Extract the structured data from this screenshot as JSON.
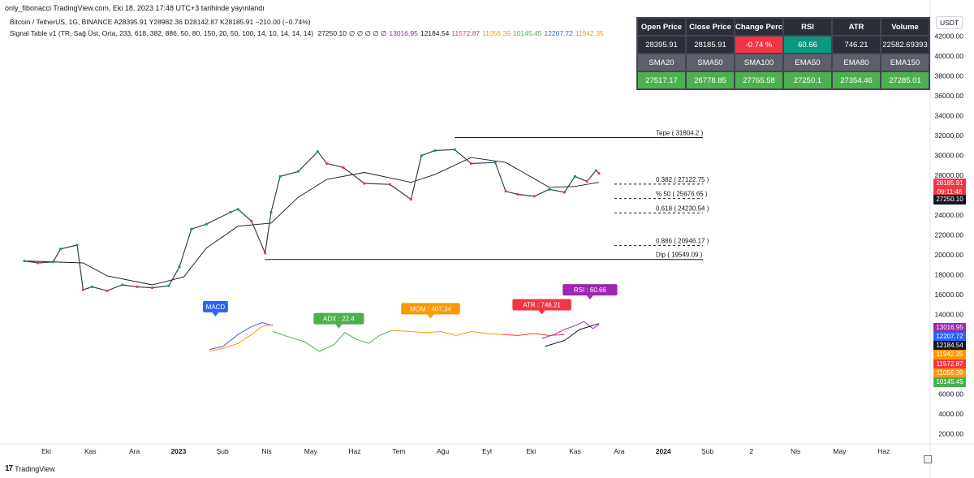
{
  "header": {
    "published_line": "only_fibonacci TradingView.com, Eki 18, 2023 17:48 UTC+3 tarihinde yayınlandı",
    "symbol_line": "Bitcoin / TetherUS, 1G, BINANCE  A28395.91  Y28982.36  D28142.87  K28185.91  −210.00 (−0.74%)",
    "indicator_name": "Signal Table v1 (TR, Sağ Üst, Orta, 233, 618, 382, 886, 50, 80, 150, 20, 50, 100, 14, 10, 14, 14, 14)",
    "indicator_values": [
      {
        "text": "27250.10",
        "color": "#131722"
      },
      {
        "text": "∅ ∅ ∅ ∅ ∅",
        "color": "#131722"
      },
      {
        "text": "13016.95",
        "color": "#9c27b0"
      },
      {
        "text": "12184.54",
        "color": "#131722"
      },
      {
        "text": "11572.87",
        "color": "#f23645"
      },
      {
        "text": "11056.39",
        "color": "#ff9800"
      },
      {
        "text": "10145.45",
        "color": "#4caf50"
      },
      {
        "text": "12207.72",
        "color": "#2962ff"
      },
      {
        "text": "11942.35",
        "color": "#ff9800"
      }
    ]
  },
  "table": {
    "headers": [
      "Open Price",
      "Close Price",
      "Change Percent",
      "RSI",
      "ATR",
      "Volume"
    ],
    "values": [
      "28395.91",
      "28185.91",
      "-0.74 %",
      "60.66",
      "746.21",
      "22582.69393"
    ],
    "ma_headers": [
      "SMA20",
      "SMA50",
      "SMA100",
      "EMA50",
      "EMA80",
      "EMA150"
    ],
    "ma_values": [
      "27517.17",
      "26778.85",
      "27765.58",
      "27250.1",
      "27354.46",
      "27285.01"
    ]
  },
  "currency": "USDT",
  "price_tags": [
    {
      "text": "28185.91",
      "color": "#f23645"
    },
    {
      "text": "09:11:46",
      "color": "#f23645"
    },
    {
      "text": "27250.10",
      "color": "#131722"
    },
    {
      "text": "13016.95",
      "color": "#9c27b0"
    },
    {
      "text": "12207.72",
      "color": "#2962ff"
    },
    {
      "text": "12184.54",
      "color": "#131722"
    },
    {
      "text": "11942.35",
      "color": "#ff9800"
    },
    {
      "text": "11572.87",
      "color": "#f23645"
    },
    {
      "text": "11056.39",
      "color": "#ff9800"
    },
    {
      "text": "10145.45",
      "color": "#4caf50"
    }
  ],
  "brand": "TradingView",
  "brand_logo": "17",
  "chart_data": {
    "type": "line",
    "ylim": [
      1000,
      44500
    ],
    "y_ticks": [
      "2000.00",
      "4000.00",
      "6000.00",
      "8000.00",
      "10000.00",
      "12000.00",
      "14000.00",
      "16000.00",
      "18000.00",
      "20000.00",
      "22000.00",
      "24000.00",
      "26000.00",
      "28000.00",
      "30000.00",
      "32000.00",
      "34000.00",
      "36000.00",
      "38000.00",
      "40000.00",
      "42000.00"
    ],
    "x_ticks": [
      "Eki",
      "Kas",
      "Ara",
      "2023",
      "Şub",
      "Nis",
      "May",
      "Haz",
      "Tem",
      "Ağu",
      "Eyl",
      "Eki",
      "Kas",
      "Ara",
      "2024",
      "Şub",
      "2",
      "Nis",
      "May",
      "Haz"
    ],
    "price_series": {
      "x": [
        "2022-10-01",
        "2022-10-10",
        "2022-10-20",
        "2022-10-25",
        "2022-11-05",
        "2022-11-09",
        "2022-11-15",
        "2022-11-25",
        "2022-12-05",
        "2022-12-15",
        "2022-12-25",
        "2023-01-05",
        "2023-01-12",
        "2023-01-20",
        "2023-01-30",
        "2023-02-15",
        "2023-02-20",
        "2023-03-01",
        "2023-03-10",
        "2023-03-14",
        "2023-03-20",
        "2023-04-01",
        "2023-04-14",
        "2023-04-20",
        "2023-05-01",
        "2023-05-15",
        "2023-06-01",
        "2023-06-15",
        "2023-06-22",
        "2023-07-01",
        "2023-07-14",
        "2023-07-25",
        "2023-08-10",
        "2023-08-17",
        "2023-08-25",
        "2023-09-05",
        "2023-09-15",
        "2023-09-25",
        "2023-10-02",
        "2023-10-10",
        "2023-10-16",
        "2023-10-18"
      ],
      "values": [
        19400,
        19200,
        19300,
        20600,
        21000,
        16500,
        16800,
        16400,
        17000,
        16800,
        16700,
        16900,
        18800,
        22600,
        23100,
        24300,
        24600,
        23400,
        20200,
        24300,
        27900,
        28400,
        30400,
        29200,
        28800,
        27200,
        27100,
        25600,
        30000,
        30500,
        30600,
        29200,
        29300,
        26400,
        26100,
        25900,
        26600,
        26300,
        27900,
        27400,
        28500,
        28200
      ]
    },
    "ma_series": {
      "x": [
        "2022-10-01",
        "2022-11-09",
        "2022-11-25",
        "2022-12-25",
        "2023-01-15",
        "2023-01-30",
        "2023-02-20",
        "2023-03-14",
        "2023-04-01",
        "2023-04-20",
        "2023-05-15",
        "2023-06-15",
        "2023-07-01",
        "2023-07-25",
        "2023-08-17",
        "2023-09-15",
        "2023-10-02",
        "2023-10-18"
      ],
      "values": [
        19400,
        19200,
        17900,
        17000,
        17800,
        20700,
        22900,
        23200,
        25800,
        27600,
        28300,
        27300,
        28100,
        29800,
        29300,
        26800,
        26900,
        27300
      ]
    },
    "fib_levels": [
      {
        "label": "Tepe",
        "value": 31804.2,
        "text": "( 31804.2 )"
      },
      {
        "label": "0.382",
        "value": 27122.75,
        "text": "( 27122.75 )"
      },
      {
        "label": "% 50",
        "value": 25676.65,
        "text": "( 25676.65 )"
      },
      {
        "label": "0.618",
        "value": 24230.54,
        "text": "( 24230.54 )"
      },
      {
        "label": "0.886",
        "value": 20946.17,
        "text": "( 20946.17 )"
      },
      {
        "label": "Dip",
        "value": 19549.09,
        "text": "( 19549.09 )"
      }
    ],
    "indicator_lines": [
      {
        "name": "MACD",
        "color": "#2962ff",
        "x": [
          "2023-02-01",
          "2023-02-10",
          "2023-02-20",
          "2023-03-01",
          "2023-03-08",
          "2023-03-15"
        ],
        "values": [
          10500,
          10800,
          12000,
          12800,
          13200,
          12900
        ]
      },
      {
        "name": "MACD signal",
        "color": "#ff9800",
        "x": [
          "2023-02-01",
          "2023-02-10",
          "2023-02-20",
          "2023-03-01",
          "2023-03-08",
          "2023-03-15"
        ],
        "values": [
          10300,
          10600,
          11100,
          12000,
          12800,
          13000
        ]
      },
      {
        "name": "ADX",
        "color": "#4caf50",
        "x": [
          "2023-03-15",
          "2023-03-25",
          "2023-04-05",
          "2023-04-15",
          "2023-04-25",
          "2023-05-02",
          "2023-05-10",
          "2023-05-18",
          "2023-05-25",
          "2023-06-02"
        ],
        "values": [
          12300,
          11800,
          11300,
          10300,
          11000,
          12200,
          11500,
          11100,
          11900,
          12400
        ]
      },
      {
        "name": "MOM",
        "color": "#ff9800",
        "x": [
          "2023-06-02",
          "2023-06-15",
          "2023-06-25",
          "2023-07-05",
          "2023-07-15",
          "2023-07-25",
          "2023-08-05",
          "2023-08-15"
        ],
        "values": [
          12400,
          12300,
          12200,
          12300,
          11900,
          12300,
          12100,
          12000
        ]
      },
      {
        "name": "ATR",
        "color": "#f23645",
        "x": [
          "2023-08-15",
          "2023-08-25",
          "2023-09-05",
          "2023-09-15",
          "2023-09-25"
        ],
        "values": [
          12000,
          11900,
          12100,
          11900,
          12000
        ]
      },
      {
        "name": "RSI",
        "color": "#9c27b0",
        "x": [
          "2023-09-10",
          "2023-09-18",
          "2023-09-25",
          "2023-10-02",
          "2023-10-08",
          "2023-10-14",
          "2023-10-18"
        ],
        "values": [
          11600,
          12000,
          12500,
          12900,
          13300,
          12600,
          13000
        ]
      },
      {
        "name": "momentum",
        "color": "#131722",
        "x": [
          "2023-09-12",
          "2023-09-25",
          "2023-10-05",
          "2023-10-18"
        ],
        "values": [
          10800,
          11400,
          12500,
          13100
        ]
      }
    ],
    "indicator_labels": [
      {
        "text": "MACD",
        "color": "#2962ff",
        "x": "2023-02-05",
        "value": 14800
      },
      {
        "text": "ADX : 22.4",
        "color": "#4caf50",
        "x": "2023-04-28",
        "value": 13600
      },
      {
        "text": "MOM : 407.34",
        "color": "#ff9800",
        "x": "2023-06-28",
        "value": 14600
      },
      {
        "text": "ATR : 746.21",
        "color": "#f23645",
        "x": "2023-09-10",
        "value": 15000
      },
      {
        "text": "RSI : 60.66",
        "color": "#9c27b0",
        "x": "2023-10-12",
        "value": 16500
      }
    ]
  }
}
